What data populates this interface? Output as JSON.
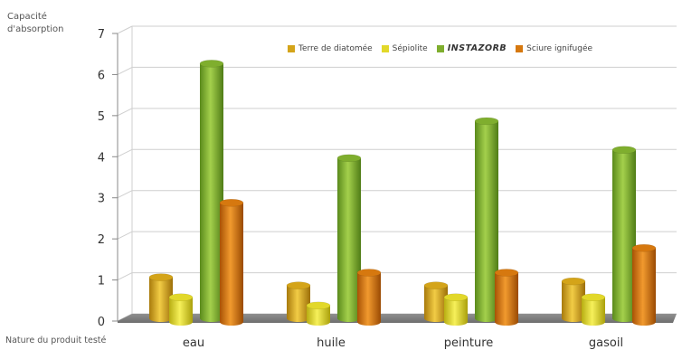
{
  "chart_data": {
    "type": "bar",
    "ylabel_line1": "Capacité",
    "ylabel_line2": "d'absorption",
    "xlabel": "Nature du produit testé",
    "categories": [
      "eau",
      "huile",
      "peinture",
      "gasoil"
    ],
    "ylim": [
      0,
      7
    ],
    "yticks": [
      "0",
      "1",
      "2",
      "3",
      "4",
      "5",
      "6",
      "7"
    ],
    "grid": true,
    "legend_position": "top-right",
    "series": [
      {
        "name": "Terre de diatomée",
        "values": [
          1.0,
          0.8,
          0.8,
          0.9
        ],
        "color": "#d4a419"
      },
      {
        "name": "Sépiolite",
        "values": [
          0.6,
          0.4,
          0.6,
          0.6
        ],
        "color": "#e2d82a"
      },
      {
        "name": "INSTAZORB",
        "values": [
          6.2,
          3.9,
          4.8,
          4.1
        ],
        "color": "#7fae2e"
      },
      {
        "name": "Sciure ignifugée",
        "values": [
          2.9,
          1.2,
          1.2,
          1.8
        ],
        "color": "#d6780f"
      }
    ]
  }
}
